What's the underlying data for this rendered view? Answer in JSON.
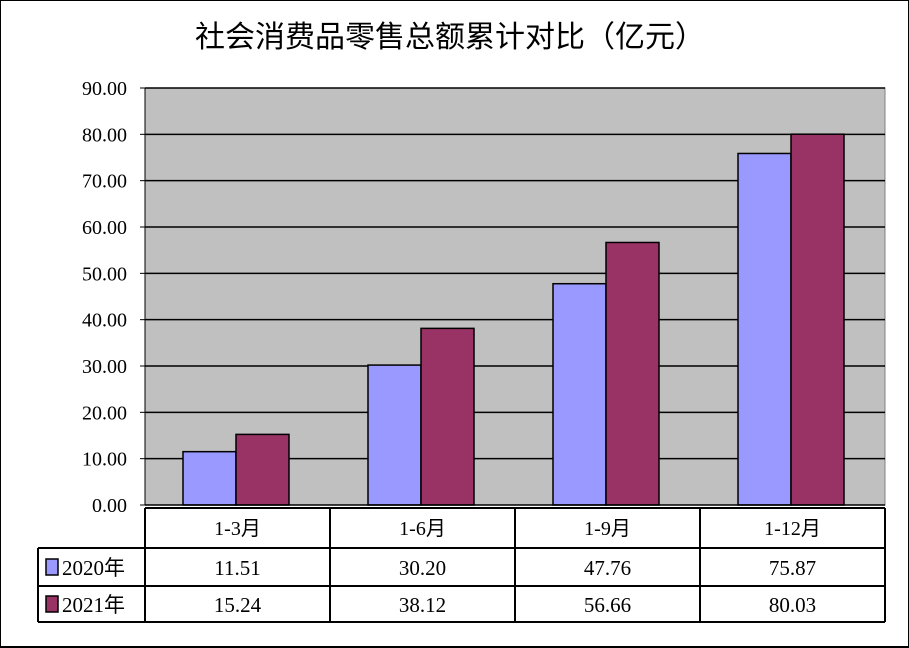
{
  "chart_data": {
    "type": "bar",
    "title": "社会消费品零售总额累计对比（亿元）",
    "categories": [
      "1-3月",
      "1-6月",
      "1-9月",
      "1-12月"
    ],
    "series": [
      {
        "name": "2020年",
        "values": [
          11.51,
          30.2,
          47.76,
          75.87
        ],
        "value_labels": [
          "11.51",
          "30.20",
          "47.76",
          "75.87"
        ],
        "color": "#9999ff"
      },
      {
        "name": "2021年",
        "values": [
          15.24,
          38.12,
          56.66,
          80.03
        ],
        "value_labels": [
          "15.24",
          "38.12",
          "56.66",
          "80.03"
        ],
        "color": "#993366"
      }
    ],
    "ylim": [
      0,
      90
    ],
    "yticks": [
      "0.00",
      "10.00",
      "20.00",
      "30.00",
      "40.00",
      "50.00",
      "60.00",
      "70.00",
      "80.00",
      "90.00"
    ],
    "grid": true,
    "plot_background": "#c0c0c0",
    "legend": "data-table-left"
  }
}
